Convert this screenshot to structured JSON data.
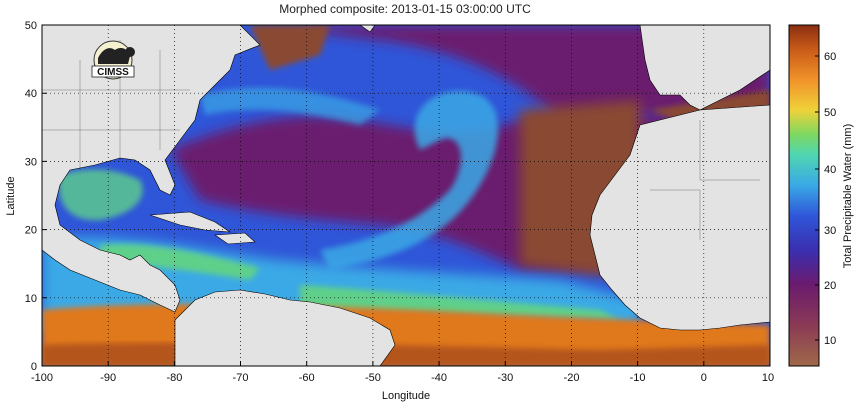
{
  "title": "Morphed composite: 2013-01-15 03:00:00 UTC",
  "x_axis": {
    "label": "Longitude",
    "ticks": [
      "-100",
      "-90",
      "-80",
      "-70",
      "-60",
      "-50",
      "-40",
      "-30",
      "-20",
      "-10",
      "0",
      "10"
    ]
  },
  "y_axis": {
    "label": "Latitude",
    "ticks": [
      "0",
      "10",
      "20",
      "30",
      "40",
      "50"
    ]
  },
  "colorbar": {
    "label": "Total Precipitable Water (mm)",
    "ticks": [
      "10",
      "20",
      "30",
      "40",
      "50",
      "60"
    ]
  },
  "logo": {
    "text": "CIMSS"
  },
  "colors": {
    "land": "#e3e3e3",
    "dry_brown": "#8a4a30",
    "purple": "#6a1b6e",
    "blue": "#2f56d8",
    "cyan": "#3aa9e6",
    "green": "#5fd08a",
    "orange": "#e0781e",
    "dark_orange": "#b4541a"
  }
}
